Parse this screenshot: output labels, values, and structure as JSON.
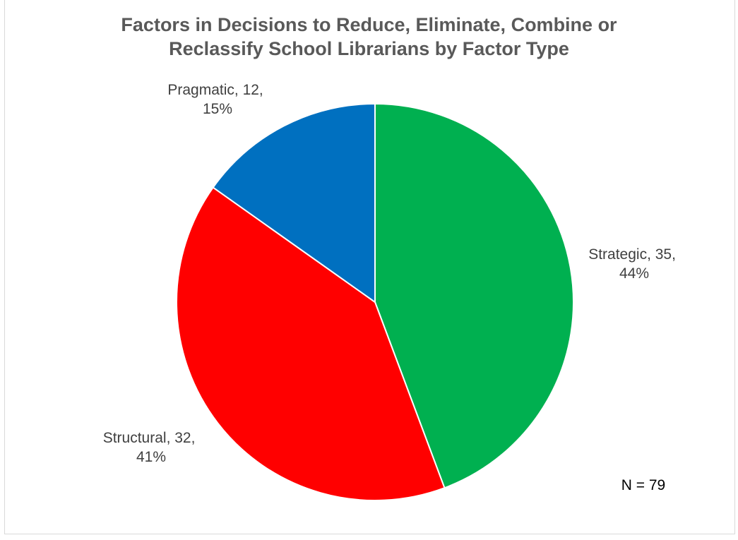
{
  "chart_data": {
    "type": "pie",
    "title_lines": [
      "Factors in Decisions to Reduce, Eliminate, Combine or",
      "Reclassify School Librarians by Factor Type"
    ],
    "slices": [
      {
        "label": "Strategic",
        "value": 35,
        "percent": "44%",
        "color": "#00b050",
        "label_lines": [
          "Strategic, 35,",
          "44%"
        ]
      },
      {
        "label": "Structural",
        "value": 32,
        "percent": "41%",
        "color": "#ff0000",
        "label_lines": [
          "Structural, 32,",
          "41%"
        ]
      },
      {
        "label": "Pragmatic",
        "value": 12,
        "percent": "15%",
        "color": "#0070c0",
        "label_lines": [
          "Pragmatic, 12,",
          "15%"
        ]
      }
    ],
    "note": "N = 79"
  }
}
